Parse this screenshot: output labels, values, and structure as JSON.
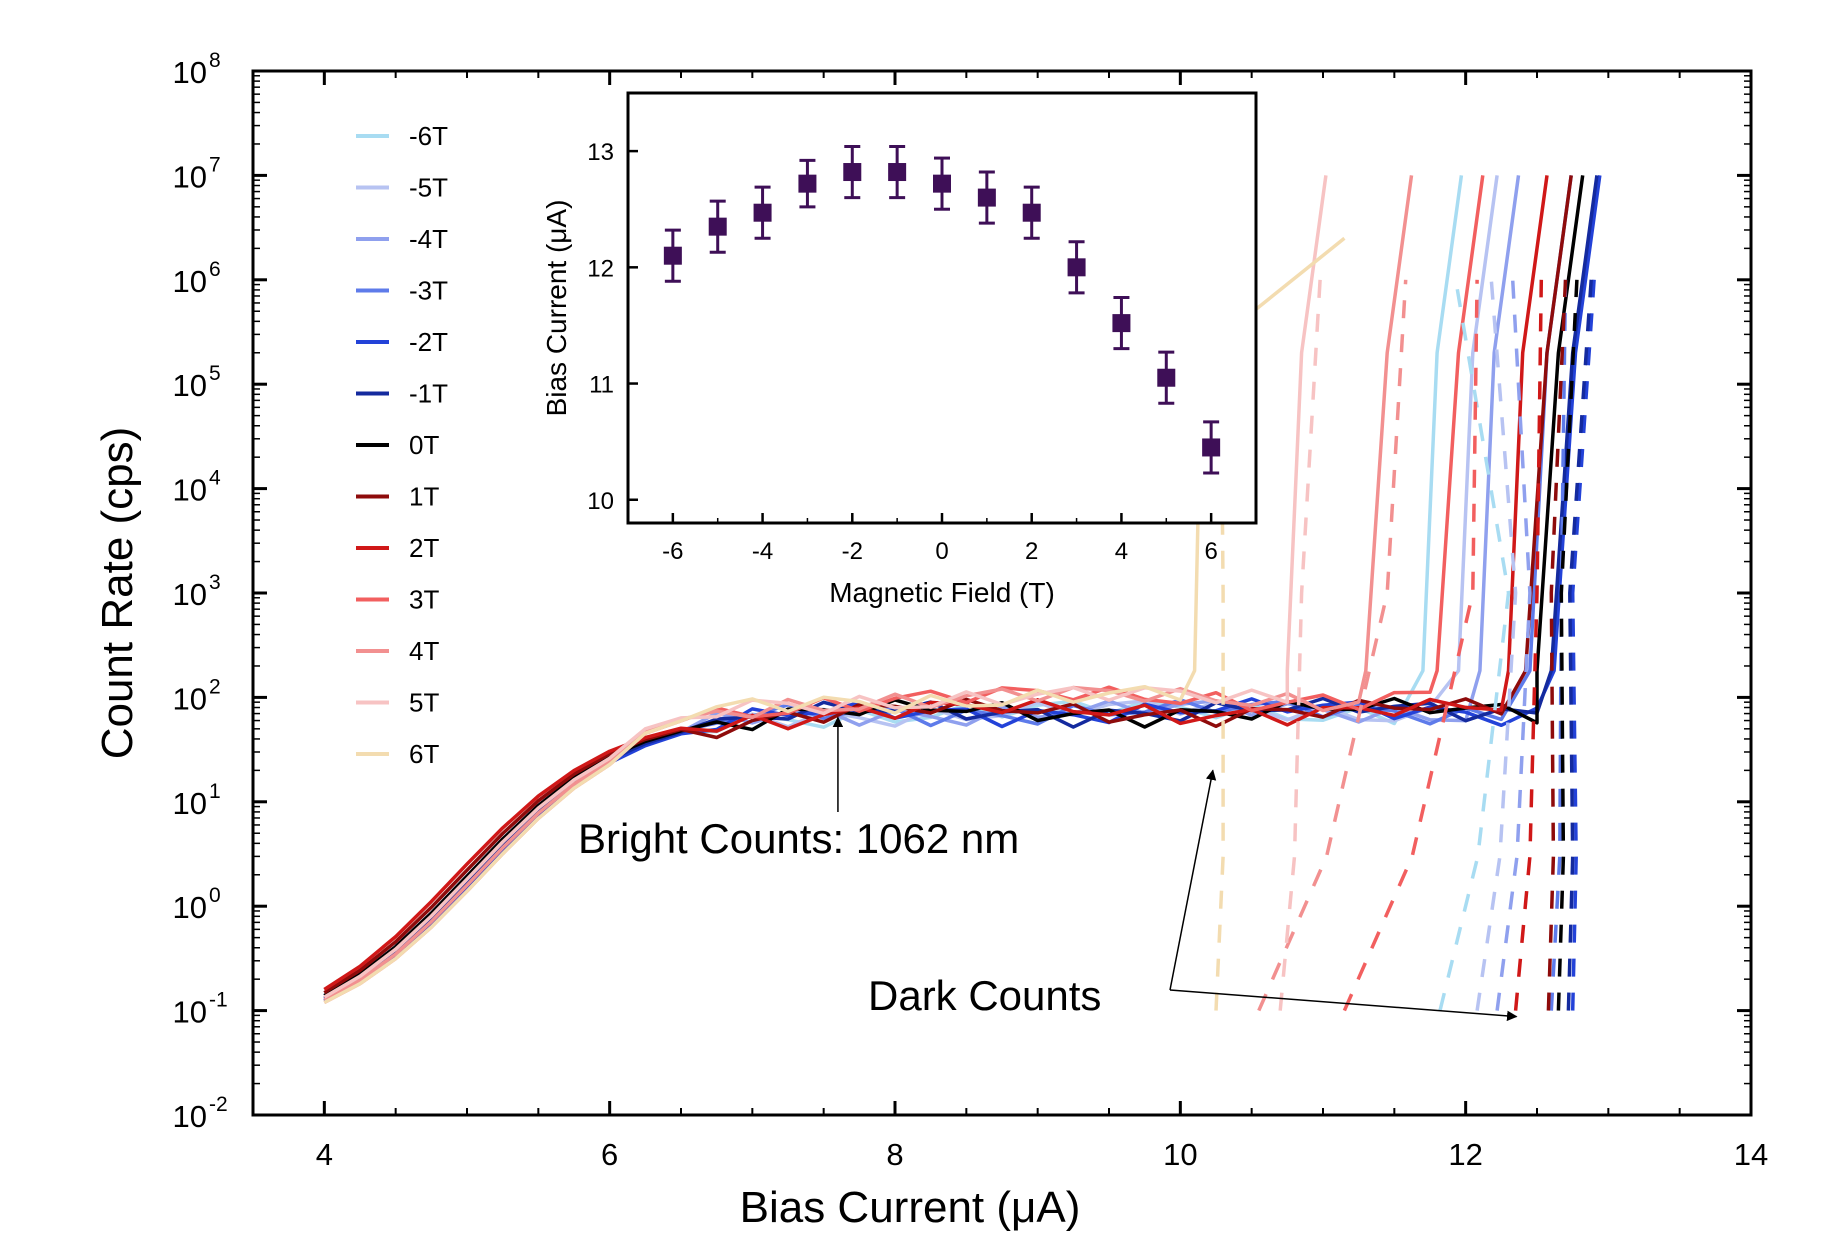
{
  "chart_data": {
    "type": "line",
    "xlabel": "Bias Current (μA)",
    "ylabel": "Count Rate (cps)",
    "yscale": "log",
    "xlim": [
      3.5,
      14
    ],
    "ylim": [
      0.01,
      100000000
    ],
    "x_ticks": [
      4,
      6,
      8,
      10,
      12,
      14
    ],
    "x_tick_labels": [
      "4",
      "6",
      "8",
      "10",
      "12",
      "14"
    ],
    "y_ticks": [
      {
        "value": 0.01,
        "base": "10",
        "exp": "-2"
      },
      {
        "value": 0.1,
        "base": "10",
        "exp": "-1"
      },
      {
        "value": 1,
        "base": "10",
        "exp": "0"
      },
      {
        "value": 10,
        "base": "10",
        "exp": "1"
      },
      {
        "value": 100,
        "base": "10",
        "exp": "2"
      },
      {
        "value": 1000,
        "base": "10",
        "exp": "3"
      },
      {
        "value": 10000,
        "base": "10",
        "exp": "4"
      },
      {
        "value": 100000,
        "base": "10",
        "exp": "5"
      },
      {
        "value": 1000000,
        "base": "10",
        "exp": "6"
      },
      {
        "value": 10000000,
        "base": "10",
        "exp": "7"
      },
      {
        "value": 100000000,
        "base": "10",
        "exp": "8"
      }
    ],
    "series": [
      {
        "name": "-6T",
        "field": -6,
        "color": "#a8dcf2",
        "bright_cutoff": 11.85,
        "knee": 11.7,
        "dark_start": 11.82,
        "dark_end": 12.35,
        "dark_floor": 0.1
      },
      {
        "name": "-5T",
        "field": -5,
        "color": "#b7c3f2",
        "bright_cutoff": 12.1,
        "knee": 11.95,
        "dark_start": 12.08,
        "dark_end": 12.4,
        "dark_floor": 0.1
      },
      {
        "name": "-4T",
        "field": -4,
        "color": "#8fa0ee",
        "bright_cutoff": 12.25,
        "knee": 12.1,
        "dark_start": 12.22,
        "dark_end": 12.5,
        "dark_floor": 0.1
      },
      {
        "name": "-3T",
        "field": -3,
        "color": "#5e7bea",
        "bright_cutoff": 12.62,
        "knee": 12.45,
        "dark_start": 12.6,
        "dark_end": 12.72,
        "dark_floor": 0.1
      },
      {
        "name": "-2T",
        "field": -2,
        "color": "#2342d8",
        "bright_cutoff": 12.82,
        "knee": 12.62,
        "dark_start": 12.75,
        "dark_end": 12.8,
        "dark_floor": 0.1
      },
      {
        "name": "-1T",
        "field": -1,
        "color": "#142a9e",
        "bright_cutoff": 12.8,
        "knee": 12.6,
        "dark_start": 12.72,
        "dark_end": 12.78,
        "dark_floor": 0.1
      },
      {
        "name": "0T",
        "field": 0,
        "color": "#000000",
        "bright_cutoff": 12.7,
        "knee": 12.5,
        "dark_start": 12.65,
        "dark_end": 12.72,
        "dark_floor": 0.1
      },
      {
        "name": "1T",
        "field": 1,
        "color": "#8e0b0b",
        "bright_cutoff": 12.62,
        "knee": 12.42,
        "dark_start": 12.58,
        "dark_end": 12.65,
        "dark_floor": 0.1
      },
      {
        "name": "2T",
        "field": 2,
        "color": "#d01818",
        "bright_cutoff": 12.45,
        "knee": 12.3,
        "dark_start": 12.35,
        "dark_end": 12.55,
        "dark_floor": 0.1
      },
      {
        "name": "3T",
        "field": 3,
        "color": "#f25f5f",
        "bright_cutoff": 12.0,
        "knee": 11.8,
        "dark_start": 11.15,
        "dark_end": 12.1,
        "dark_floor": 0.1
      },
      {
        "name": "4T",
        "field": 4,
        "color": "#f29090",
        "bright_cutoff": 11.5,
        "knee": 11.3,
        "dark_start": 10.55,
        "dark_end": 11.5,
        "dark_floor": 0.1
      },
      {
        "name": "5T",
        "field": 5,
        "color": "#f7c3c3",
        "bright_cutoff": 10.9,
        "knee": 10.75,
        "dark_start": 10.7,
        "dark_end": 10.9,
        "dark_floor": 0.1
      },
      {
        "name": "6T",
        "field": 6,
        "color": "#f3dcb0",
        "bright_cutoff": 10.2,
        "knee": 10.1,
        "dark_start": 10.25,
        "dark_end": 10.35,
        "dark_floor": 0.1
      }
    ],
    "annotations": [
      {
        "text": "Bright Counts: 1062 nm",
        "points_to": {
          "x": 7.6,
          "y": 80
        }
      },
      {
        "text": "Dark Counts",
        "points_to": [
          {
            "x": 10.2,
            "y": 20
          },
          {
            "x": 12.3,
            "y": 0.1
          }
        ]
      }
    ],
    "inset": {
      "type": "scatter",
      "xlabel": "Magnetic Field (T)",
      "ylabel": "Bias Current (μA)",
      "xlim": [
        -7,
        7
      ],
      "ylim": [
        9.8,
        13.5
      ],
      "x_ticks": [
        -6,
        -4,
        -2,
        0,
        2,
        4,
        6
      ],
      "y_ticks": [
        10,
        11,
        12,
        13
      ],
      "marker_color": "#3e0f57",
      "points": [
        {
          "x": -6,
          "y": 12.1,
          "err": 0.22
        },
        {
          "x": -5,
          "y": 12.35,
          "err": 0.22
        },
        {
          "x": -4,
          "y": 12.47,
          "err": 0.22
        },
        {
          "x": -3,
          "y": 12.72,
          "err": 0.2
        },
        {
          "x": -2,
          "y": 12.82,
          "err": 0.22
        },
        {
          "x": -1,
          "y": 12.82,
          "err": 0.22
        },
        {
          "x": 0,
          "y": 12.72,
          "err": 0.22
        },
        {
          "x": 1,
          "y": 12.6,
          "err": 0.22
        },
        {
          "x": 2,
          "y": 12.47,
          "err": 0.22
        },
        {
          "x": 3,
          "y": 12.0,
          "err": 0.22
        },
        {
          "x": 4,
          "y": 11.52,
          "err": 0.22
        },
        {
          "x": 5,
          "y": 11.05,
          "err": 0.22
        },
        {
          "x": 6,
          "y": 10.45,
          "err": 0.22
        }
      ]
    }
  }
}
